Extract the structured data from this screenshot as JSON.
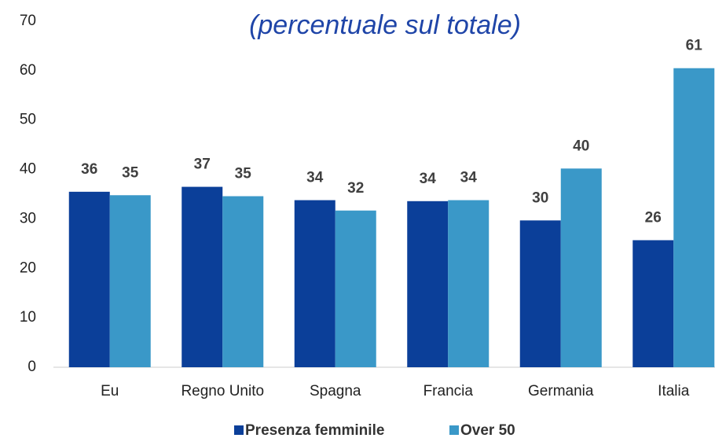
{
  "chart_data": {
    "type": "bar",
    "title": "(percentuale sul totale)",
    "categories": [
      "Eu",
      "Regno Unito",
      "Spagna",
      "Francia",
      "Germania",
      "Italia"
    ],
    "series": [
      {
        "name": "Presenza femminile",
        "color": "#0b3f99",
        "values": [
          35.5,
          36.5,
          33.8,
          33.6,
          29.7,
          25.7
        ],
        "value_labels": [
          "36",
          "37",
          "34",
          "34",
          "30",
          "26"
        ]
      },
      {
        "name": "Over 50",
        "color": "#3a98c8",
        "values": [
          34.8,
          34.6,
          31.7,
          33.8,
          40.2,
          60.5
        ],
        "value_labels": [
          "35",
          "35",
          "32",
          "34",
          "40",
          "61"
        ]
      }
    ],
    "ylim": [
      0,
      70
    ],
    "yticks": [
      0,
      10,
      20,
      30,
      40,
      50,
      60,
      70
    ],
    "grid": false,
    "legend": "bottom"
  }
}
